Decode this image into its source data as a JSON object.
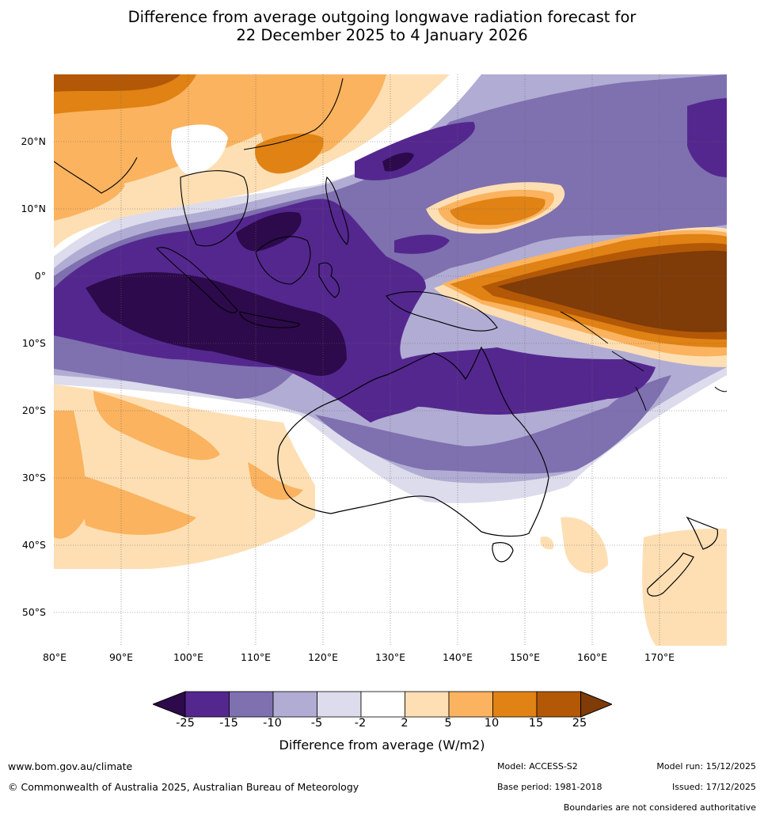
{
  "title": {
    "line1": "Difference from average outgoing longwave radiation forecast for",
    "line2": "22 December 2025 to 4 January 2026"
  },
  "map": {
    "lat_labels": [
      "20°N",
      "10°N",
      "0°",
      "10°S",
      "20°S",
      "30°S",
      "40°S",
      "50°S"
    ],
    "lon_labels": [
      "80°E",
      "90°E",
      "100°E",
      "110°E",
      "120°E",
      "130°E",
      "140°E",
      "150°E",
      "160°E",
      "170°E"
    ],
    "lon_range": [
      80,
      180
    ],
    "lat_range": [
      -55,
      30
    ]
  },
  "colorbar": {
    "ticks": [
      "-25",
      "-15",
      "-10",
      "-5",
      "-2",
      "2",
      "5",
      "10",
      "15",
      "25"
    ],
    "colors": [
      "#2d0a4b",
      "#54278f",
      "#7f70b0",
      "#b1acd3",
      "#dcdcec",
      "#ffffff",
      "#fedfb4",
      "#fbb35f",
      "#e08214",
      "#b35806",
      "#7f3b08"
    ],
    "title": "Difference from average (W/m2)"
  },
  "footer": {
    "website": "www.bom.gov.au/climate",
    "copyright": "© Commonwealth of Australia 2025, Australian Bureau of Meteorology",
    "model": "Model: ACCESS-S2",
    "base_period": "Base period: 1981-2018",
    "model_run": "Model run: 15/12/2025",
    "issued": "Issued: 17/12/2025",
    "disclaimer": "Boundaries are not considered authoritative"
  }
}
